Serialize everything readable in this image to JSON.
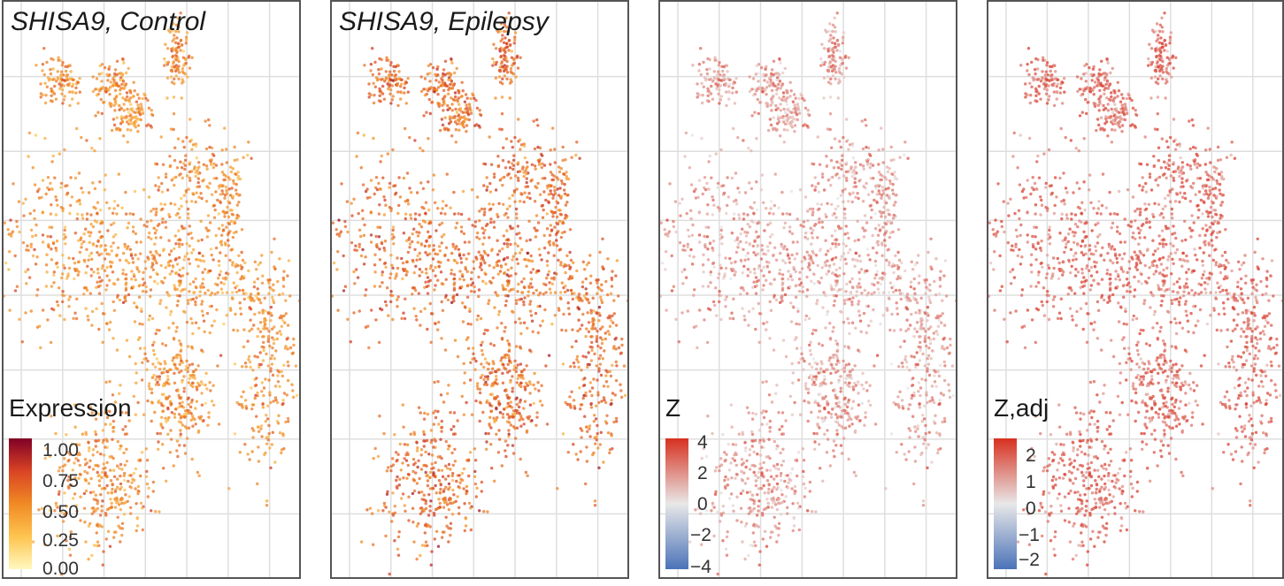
{
  "chart_data": [
    {
      "type": "scatter",
      "title": "SHISA9, Control",
      "legend": {
        "title": "Expression",
        "ticks": [
          "1.00",
          "0.75",
          "0.50",
          "0.25",
          "0.00"
        ],
        "range": [
          0,
          1
        ],
        "colors": [
          "#fff8c0",
          "#fec44f",
          "#f08a24",
          "#d94424",
          "#800026"
        ],
        "placement": "bottom-left"
      },
      "grid": true,
      "intensity": 0.5
    },
    {
      "type": "scatter",
      "title": "SHISA9, Epilepsy",
      "legend": null,
      "grid": true,
      "intensity": 0.62
    },
    {
      "type": "scatter",
      "title": "",
      "legend": {
        "title": "Z",
        "ticks": [
          "4",
          "2",
          "0",
          "−2",
          "−4"
        ],
        "range": [
          -4,
          4
        ],
        "colors": [
          "#4b73b8",
          "#e8e8e8",
          "#d7301f"
        ],
        "placement": "bottom-left"
      },
      "grid": true,
      "intensity": 0.25
    },
    {
      "type": "scatter",
      "title": "",
      "legend": {
        "title": "Z,adj",
        "ticks": [
          "2",
          "1",
          "0",
          "−1",
          "−2"
        ],
        "range": [
          -2.5,
          2.5
        ],
        "colors": [
          "#4b73b8",
          "#e8e8e8",
          "#d7301f"
        ],
        "placement": "bottom-left"
      },
      "grid": true,
      "intensity": 0.4
    }
  ]
}
